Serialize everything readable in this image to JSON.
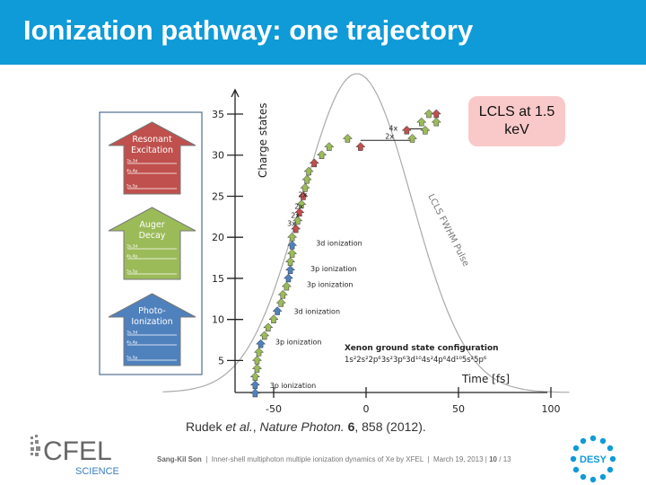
{
  "slide": {
    "title": "Ionization pathway: one trajectory",
    "note_box": "LCLS at 1.5 keV",
    "citation": {
      "authors": "Rudek ",
      "etal": "et al.",
      "sep1": ", ",
      "journal": "Nature Photon.",
      "sep2": " ",
      "volume": "6",
      "rest": ", 858 (2012)."
    },
    "footer": {
      "presenter": "Sang-Kil Son",
      "talk": "Inner-shell multiphoton multiple ionization dynamics of Xe by XFEL",
      "date": "March 19, 2013",
      "page": "10",
      "total": "13"
    },
    "logos": {
      "cfel_text": "CFEL",
      "cfel_sub": "SCIENCE",
      "desy_text": "DESY"
    },
    "colors": {
      "header": "#0f9ad8",
      "resonant": "#c0504d",
      "auger": "#9bbb59",
      "photo": "#4f81bd"
    }
  },
  "legend": [
    {
      "label": "Resonant\nExcitation",
      "color": "#c0504d",
      "levels": [
        "3s,3d",
        "4s,4p",
        "5s,5p"
      ]
    },
    {
      "label": "Auger\nDecay",
      "color": "#9bbb59",
      "levels": [
        "3s,3d",
        "4s,4p",
        "5s,5p"
      ]
    },
    {
      "label": "Photo-\nIonization",
      "color": "#4f81bd",
      "levels": [
        "3s,3d",
        "4s,4p",
        "5s,5p"
      ]
    }
  ],
  "chart_data": {
    "type": "scatter",
    "xlabel": "Time [fs]",
    "ylabel": "Charge states",
    "xlim": [
      -80,
      100
    ],
    "ylim": [
      1,
      37
    ],
    "x_ticks": [
      "-50",
      "0",
      "50",
      "100"
    ],
    "y_ticks": [
      "5",
      "10",
      "15",
      "20",
      "25",
      "30",
      "35"
    ],
    "pulse_label": "LCLS FWHM Pulse",
    "ground_state_title": "Xenon ground state configuration",
    "ground_state_config": "1s²2s²2p⁶3s²3p⁶3d¹⁰4s²4p⁶4d¹⁰5s²5p⁶",
    "annotations": [
      {
        "text": "3p ionization",
        "x": -55,
        "y": 2
      },
      {
        "text": "3p ionization",
        "x": -52,
        "y": 7.3
      },
      {
        "text": "3d ionization",
        "x": -42,
        "y": 11
      },
      {
        "text": "3p ionization",
        "x": -35,
        "y": 14.3
      },
      {
        "text": "3p ionization",
        "x": -33,
        "y": 16.2
      },
      {
        "text": "3d ionization",
        "x": -30,
        "y": 19.3
      },
      {
        "text": "3x",
        "x": -35,
        "y": 21.7
      },
      {
        "text": "2x",
        "x": -33,
        "y": 22.7
      },
      {
        "text": "2x",
        "x": -31,
        "y": 23.8
      },
      {
        "text": "2x",
        "x": -29,
        "y": 25.2
      },
      {
        "text": "2x",
        "x": 18,
        "y": 32.3
      },
      {
        "text": "4x",
        "x": 20,
        "y": 33.3
      }
    ],
    "points": [
      {
        "t": -60,
        "q": 1,
        "k": "P"
      },
      {
        "t": -60,
        "q": 2,
        "k": "P"
      },
      {
        "t": -60,
        "q": 3,
        "k": "A"
      },
      {
        "t": -59,
        "q": 4,
        "k": "A"
      },
      {
        "t": -59,
        "q": 5,
        "k": "A"
      },
      {
        "t": -58,
        "q": 6,
        "k": "A"
      },
      {
        "t": -57,
        "q": 7,
        "k": "P"
      },
      {
        "t": -55,
        "q": 8,
        "k": "A"
      },
      {
        "t": -53,
        "q": 9,
        "k": "A"
      },
      {
        "t": -50,
        "q": 10,
        "k": "A"
      },
      {
        "t": -48,
        "q": 11,
        "k": "P"
      },
      {
        "t": -46,
        "q": 12,
        "k": "A"
      },
      {
        "t": -45,
        "q": 13,
        "k": "A"
      },
      {
        "t": -43,
        "q": 14,
        "k": "A"
      },
      {
        "t": -42,
        "q": 15,
        "k": "P"
      },
      {
        "t": -41,
        "q": 16,
        "k": "P"
      },
      {
        "t": -41,
        "q": 17,
        "k": "A"
      },
      {
        "t": -40,
        "q": 18,
        "k": "A"
      },
      {
        "t": -40,
        "q": 19,
        "k": "P"
      },
      {
        "t": -40,
        "q": 20,
        "k": "A"
      },
      {
        "t": -38,
        "q": 21,
        "k": "R"
      },
      {
        "t": -37,
        "q": 22,
        "k": "A"
      },
      {
        "t": -36,
        "q": 23,
        "k": "R"
      },
      {
        "t": -35,
        "q": 24,
        "k": "A"
      },
      {
        "t": -34,
        "q": 25,
        "k": "R"
      },
      {
        "t": -33,
        "q": 26,
        "k": "A"
      },
      {
        "t": -32,
        "q": 27,
        "k": "A"
      },
      {
        "t": -31,
        "q": 28,
        "k": "A"
      },
      {
        "t": -28,
        "q": 29,
        "k": "R"
      },
      {
        "t": -24,
        "q": 30,
        "k": "A"
      },
      {
        "t": -20,
        "q": 31,
        "k": "A"
      },
      {
        "t": -3,
        "q": 31,
        "k": "R"
      },
      {
        "t": -10,
        "q": 32,
        "k": "A"
      },
      {
        "t": 25,
        "q": 32,
        "k": "A"
      },
      {
        "t": 22,
        "q": 33,
        "k": "R"
      },
      {
        "t": 32,
        "q": 33,
        "k": "A"
      },
      {
        "t": 30,
        "q": 34,
        "k": "A"
      },
      {
        "t": 38,
        "q": 34,
        "k": "A"
      },
      {
        "t": 34,
        "q": 35,
        "k": "A"
      },
      {
        "t": 38,
        "q": 35,
        "k": "R"
      }
    ],
    "steps": [
      {
        "x1": -3,
        "x2": 25,
        "q": 31.8
      },
      {
        "x1": 22,
        "x2": 32,
        "q": 33.2
      }
    ]
  }
}
